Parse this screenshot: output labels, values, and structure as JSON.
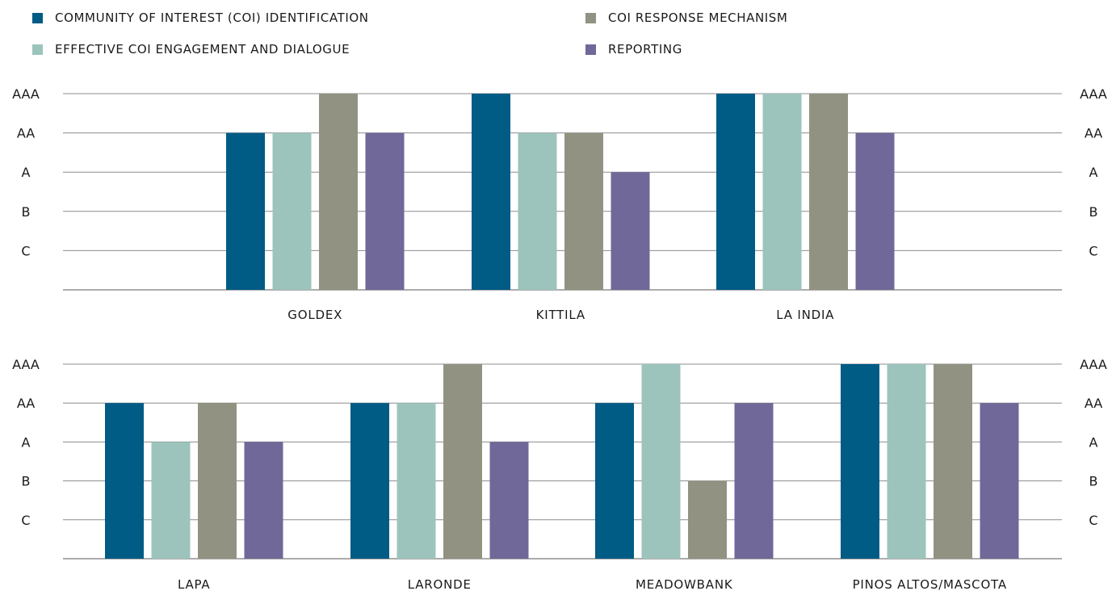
{
  "legend": [
    {
      "label": "COMMUNITY OF INTEREST (COI) IDENTIFICATION",
      "color": "#005b85"
    },
    {
      "label": "EFFECTIVE COI ENGAGEMENT AND DIALOGUE",
      "color": "#9cc4bc"
    },
    {
      "label": "COI RESPONSE MECHANISM",
      "color": "#929282"
    },
    {
      "label": "REPORTING",
      "color": "#706898"
    }
  ],
  "chart_data": [
    {
      "type": "bar",
      "y_ticks": [
        "C",
        "B",
        "A",
        "AA",
        "AAA"
      ],
      "categories": [
        "GOLDEX",
        "KITTILA",
        "LA INDIA"
      ],
      "series": [
        {
          "name": "COMMUNITY OF INTEREST (COI) IDENTIFICATION",
          "values": [
            "AA",
            "AAA",
            "AAA"
          ]
        },
        {
          "name": "EFFECTIVE COI ENGAGEMENT AND DIALOGUE",
          "values": [
            "AA",
            "AA",
            "AAA"
          ]
        },
        {
          "name": "COI RESPONSE MECHANISM",
          "values": [
            "AAA",
            "AA",
            "AAA"
          ]
        },
        {
          "name": "REPORTING",
          "values": [
            "AA",
            "A",
            "AA"
          ]
        }
      ],
      "grid": true
    },
    {
      "type": "bar",
      "y_ticks": [
        "C",
        "B",
        "A",
        "AA",
        "AAA"
      ],
      "categories": [
        "LAPA",
        "LARONDE",
        "MEADOWBANK",
        "PINOS ALTOS/MASCOTA"
      ],
      "series": [
        {
          "name": "COMMUNITY OF INTEREST (COI) IDENTIFICATION",
          "values": [
            "AA",
            "AA",
            "AA",
            "AAA"
          ]
        },
        {
          "name": "EFFECTIVE COI ENGAGEMENT AND DIALOGUE",
          "values": [
            "A",
            "AA",
            "AAA",
            "AAA"
          ]
        },
        {
          "name": "COI RESPONSE MECHANISM",
          "values": [
            "AA",
            "AAA",
            "B",
            "AAA"
          ]
        },
        {
          "name": "REPORTING",
          "values": [
            "A",
            "A",
            "AA",
            "AA"
          ]
        }
      ],
      "grid": true
    }
  ]
}
